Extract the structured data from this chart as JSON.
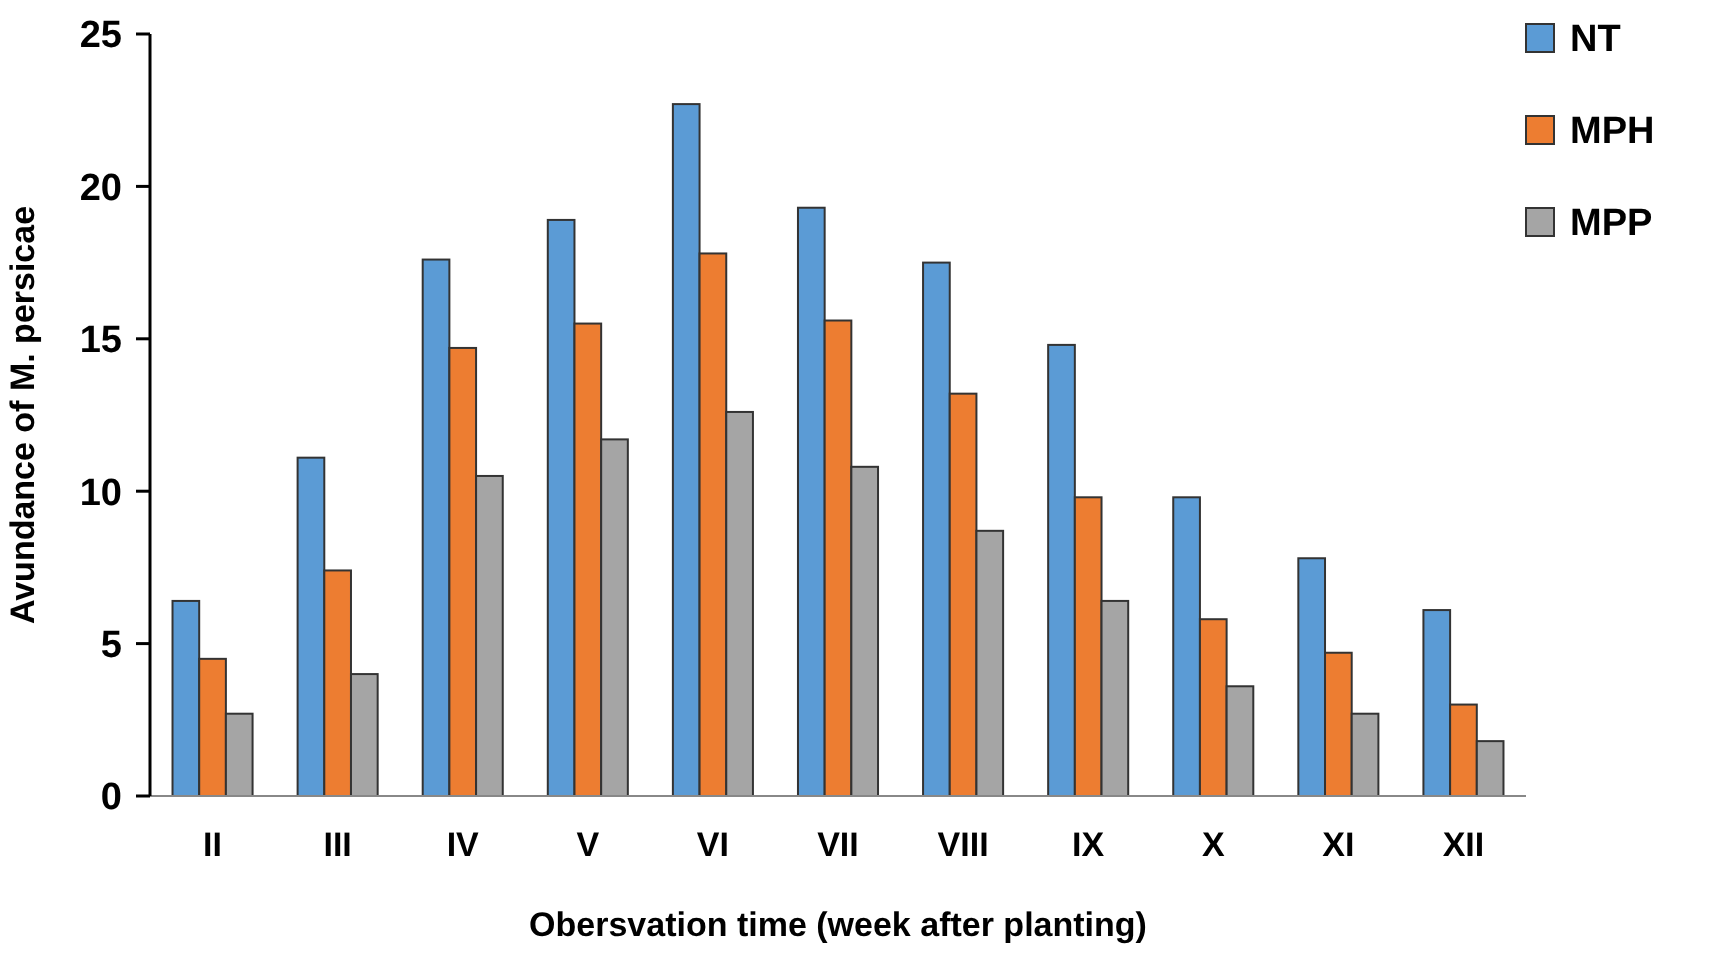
{
  "chart_data": {
    "type": "bar",
    "xlabel": "Obersvation time (week after planting)",
    "ylabel": "Avundance of M. persicae",
    "categories": [
      "II",
      "III",
      "IV",
      "V",
      "VI",
      "VII",
      "VIII",
      "IX",
      "X",
      "XI",
      "XII"
    ],
    "series": [
      {
        "name": "NT",
        "color": "#5b9bd5",
        "values": [
          6.4,
          11.1,
          17.6,
          18.9,
          22.7,
          19.3,
          17.5,
          14.8,
          9.8,
          7.8,
          6.1
        ]
      },
      {
        "name": "MPH",
        "color": "#ed7d31",
        "values": [
          4.5,
          7.4,
          14.7,
          15.5,
          17.8,
          15.6,
          13.2,
          9.8,
          5.8,
          4.7,
          3.0
        ]
      },
      {
        "name": "MPP",
        "color": "#a5a5a5",
        "values": [
          2.7,
          4.0,
          10.5,
          11.7,
          12.6,
          10.8,
          8.7,
          6.4,
          3.6,
          2.7,
          1.8
        ]
      }
    ],
    "ylim": [
      0,
      25
    ],
    "yticks": [
      0,
      5,
      10,
      15,
      20,
      25
    ],
    "grid": false,
    "legend": "top right"
  }
}
